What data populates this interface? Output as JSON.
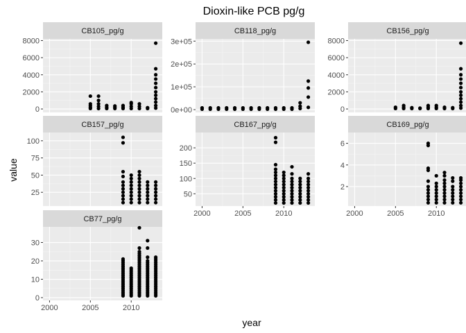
{
  "chart_data": {
    "type": "scatter",
    "title": "Dioxin-like PCB pg/g",
    "xlabel": "year",
    "ylabel": "value",
    "xlim": [
      1999.2,
      2013.8
    ],
    "x_ticks": [
      2000,
      2005,
      2010
    ],
    "x_tick_labels": [
      "2000",
      "2005",
      "2010"
    ],
    "grid": true,
    "background": "#ebebeb",
    "strip_background": "#d9d9d9",
    "point_color": "#000000",
    "panels": [
      {
        "name": "CB105_pg/g",
        "ylim": [
          -400,
          8200
        ],
        "y_ticks": [
          0,
          2000,
          4000,
          6000,
          8000
        ],
        "y_tick_labels": [
          "0",
          "2000",
          "4000",
          "6000",
          "8000"
        ],
        "points": [
          {
            "x": 2005,
            "y": [
              50,
              200,
              400,
              600,
              1500
            ]
          },
          {
            "x": 2006,
            "y": [
              50,
              300,
              600,
              1000,
              1500
            ]
          },
          {
            "x": 2007,
            "y": [
              50,
              200,
              400
            ]
          },
          {
            "x": 2008,
            "y": [
              50,
              200,
              350
            ]
          },
          {
            "x": 2009,
            "y": [
              50,
              200,
              400
            ]
          },
          {
            "x": 2010,
            "y": [
              50,
              300,
              600,
              750
            ]
          },
          {
            "x": 2011,
            "y": [
              50,
              300,
              600
            ]
          },
          {
            "x": 2012,
            "y": [
              50,
              150
            ]
          },
          {
            "x": 2013,
            "y": [
              100,
              400,
              800,
              1200,
              1600,
              2000,
              2500,
              3000,
              3500,
              4000,
              4700,
              7700
            ]
          }
        ]
      },
      {
        "name": "CB118_pg/g",
        "ylim": [
          -12000,
          310000
        ],
        "y_ticks": [
          0,
          100000,
          200000,
          300000
        ],
        "y_tick_labels": [
          "0e+00",
          "1e+05",
          "2e+05",
          "3e+05"
        ],
        "points": [
          {
            "x": 2000,
            "y": [
              2000,
              8000
            ]
          },
          {
            "x": 2001,
            "y": [
              2000,
              8000
            ]
          },
          {
            "x": 2002,
            "y": [
              2000,
              8000
            ]
          },
          {
            "x": 2003,
            "y": [
              2000,
              8000
            ]
          },
          {
            "x": 2004,
            "y": [
              2000,
              8000
            ]
          },
          {
            "x": 2005,
            "y": [
              2000,
              8000
            ]
          },
          {
            "x": 2006,
            "y": [
              2000,
              8000
            ]
          },
          {
            "x": 2007,
            "y": [
              2000,
              8000
            ]
          },
          {
            "x": 2008,
            "y": [
              2000,
              8000
            ]
          },
          {
            "x": 2009,
            "y": [
              2000,
              8000
            ]
          },
          {
            "x": 2010,
            "y": [
              2000,
              8000
            ]
          },
          {
            "x": 2011,
            "y": [
              2000,
              8000
            ]
          },
          {
            "x": 2012,
            "y": [
              5000,
              15000,
              30000
            ]
          },
          {
            "x": 2013,
            "y": [
              10000,
              55000,
              95000,
              125000,
              295000
            ]
          }
        ]
      },
      {
        "name": "CB156_pg/g",
        "ylim": [
          -400,
          8200
        ],
        "y_ticks": [
          0,
          2000,
          4000,
          6000,
          8000
        ],
        "y_tick_labels": [
          "0",
          "2000",
          "4000",
          "6000",
          "8000"
        ],
        "points": [
          {
            "x": 2005,
            "y": [
              50,
              200
            ]
          },
          {
            "x": 2006,
            "y": [
              50,
              200,
              400
            ]
          },
          {
            "x": 2007,
            "y": [
              50,
              150
            ]
          },
          {
            "x": 2008,
            "y": [
              50,
              100
            ]
          },
          {
            "x": 2009,
            "y": [
              50,
              200,
              400
            ]
          },
          {
            "x": 2010,
            "y": [
              50,
              200,
              400
            ]
          },
          {
            "x": 2011,
            "y": [
              50,
              200
            ]
          },
          {
            "x": 2012,
            "y": [
              50,
              150
            ]
          },
          {
            "x": 2013,
            "y": [
              100,
              400,
              800,
              1200,
              1600,
              2000,
              2500,
              3000,
              3500,
              4000,
              4700,
              7700
            ]
          }
        ]
      },
      {
        "name": "CB157_pg/g",
        "ylim": [
          5,
          112
        ],
        "y_ticks": [
          25,
          50,
          75,
          100
        ],
        "y_tick_labels": [
          "25",
          "50",
          "75",
          "100"
        ],
        "points": [
          {
            "x": 2009,
            "y": [
              10,
              15,
              20,
              25,
              30,
              35,
              40,
              48,
              55,
              97,
              105
            ]
          },
          {
            "x": 2010,
            "y": [
              10,
              15,
              20,
              25,
              30,
              35,
              40,
              45,
              50
            ]
          },
          {
            "x": 2011,
            "y": [
              10,
              15,
              20,
              25,
              30,
              35,
              40,
              45,
              50,
              55
            ]
          },
          {
            "x": 2012,
            "y": [
              10,
              15,
              20,
              25,
              30,
              35,
              40
            ]
          },
          {
            "x": 2013,
            "y": [
              10,
              15,
              20,
              25,
              30,
              35,
              40
            ]
          }
        ]
      },
      {
        "name": "CB167_pg/g",
        "ylim": [
          10,
          250
        ],
        "y_ticks": [
          50,
          100,
          150,
          200
        ],
        "y_tick_labels": [
          "50",
          "100",
          "150",
          "200"
        ],
        "points": [
          {
            "x": 2009,
            "y": [
              20,
              30,
              40,
              50,
              60,
              70,
              80,
              90,
              100,
              110,
              120,
              130,
              145,
              218,
              233
            ]
          },
          {
            "x": 2010,
            "y": [
              20,
              30,
              40,
              50,
              60,
              70,
              80,
              90,
              100,
              110,
              120
            ]
          },
          {
            "x": 2011,
            "y": [
              20,
              30,
              40,
              50,
              60,
              70,
              80,
              90,
              100,
              115,
              138
            ]
          },
          {
            "x": 2012,
            "y": [
              20,
              30,
              40,
              50,
              60,
              70,
              80,
              90,
              100
            ]
          },
          {
            "x": 2013,
            "y": [
              20,
              30,
              40,
              50,
              60,
              70,
              80,
              90,
              100,
              115
            ]
          }
        ]
      },
      {
        "name": "CB169_pg/g",
        "ylim": [
          0.2,
          7.0
        ],
        "y_ticks": [
          2,
          4,
          6
        ],
        "y_tick_labels": [
          "2",
          "4",
          "6"
        ],
        "points": [
          {
            "x": 2009,
            "y": [
              0.5,
              0.8,
              1.1,
              1.4,
              1.7,
              2.0,
              2.5,
              3.5,
              3.7,
              5.8,
              6.0
            ]
          },
          {
            "x": 2010,
            "y": [
              0.5,
              0.8,
              1.1,
              1.4,
              1.7,
              2.0,
              2.3,
              3.0
            ]
          },
          {
            "x": 2011,
            "y": [
              0.5,
              0.8,
              1.1,
              1.4,
              1.7,
              2.0,
              2.3,
              2.6,
              3.0,
              3.3
            ]
          },
          {
            "x": 2012,
            "y": [
              0.5,
              0.8,
              1.1,
              1.4,
              1.7,
              2.0,
              2.5,
              2.8
            ]
          },
          {
            "x": 2013,
            "y": [
              0.5,
              0.8,
              1.1,
              1.4,
              1.7,
              2.0,
              2.3,
              2.6,
              2.8
            ]
          }
        ]
      },
      {
        "name": "CB77_pg/g",
        "ylim": [
          -1.5,
          38.5
        ],
        "y_ticks": [
          0,
          10,
          20,
          30
        ],
        "y_tick_labels": [
          "0",
          "10",
          "20",
          "30"
        ],
        "points": [
          {
            "x": 2009,
            "y": [
              1,
              2,
              3,
              4,
              5,
              6,
              7,
              8,
              9,
              10,
              11,
              12,
              13,
              14,
              15,
              16,
              17,
              18,
              19,
              20,
              21
            ]
          },
          {
            "x": 2010,
            "y": [
              1,
              2,
              3,
              4,
              5,
              6,
              7,
              8,
              9,
              10,
              11,
              12,
              13,
              14,
              15,
              16
            ]
          },
          {
            "x": 2011,
            "y": [
              1,
              2,
              3,
              4,
              5,
              6,
              7,
              8,
              9,
              10,
              11,
              12,
              13,
              14,
              15,
              16,
              17,
              18,
              19,
              20,
              21,
              22,
              23,
              24,
              25,
              27,
              38
            ]
          },
          {
            "x": 2012,
            "y": [
              1,
              2,
              3,
              4,
              5,
              6,
              7,
              8,
              9,
              10,
              11,
              12,
              13,
              14,
              15,
              16,
              17,
              18,
              19,
              20,
              22,
              27,
              31
            ]
          },
          {
            "x": 2013,
            "y": [
              1,
              2,
              3,
              4,
              5,
              6,
              7,
              8,
              9,
              10,
              11,
              12,
              13,
              14,
              15,
              16,
              17,
              18,
              19,
              20,
              21,
              22
            ]
          }
        ]
      }
    ]
  }
}
